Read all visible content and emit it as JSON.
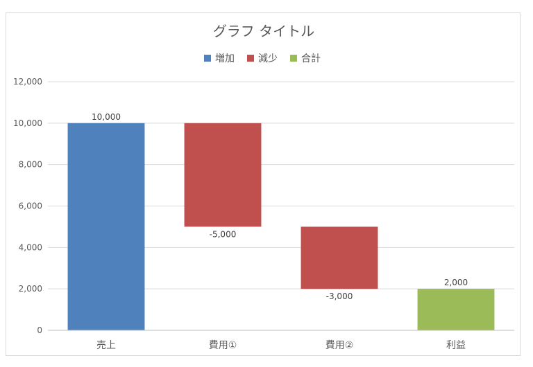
{
  "chart_data": {
    "type": "bar",
    "subtype": "waterfall",
    "title": "グラフ タイトル",
    "legend": [
      {
        "name": "増加",
        "color": "#4f81bd"
      },
      {
        "name": "減少",
        "color": "#c0504d"
      },
      {
        "name": "合計",
        "color": "#9bbb59"
      }
    ],
    "legend_position": "top",
    "categories": [
      "売上",
      "費用①",
      "費用②",
      "利益"
    ],
    "bars": [
      {
        "category": "売上",
        "series": "増加",
        "start": 0,
        "end": 10000,
        "label": "10,000"
      },
      {
        "category": "費用①",
        "series": "減少",
        "start": 10000,
        "end": 5000,
        "label": "-5,000"
      },
      {
        "category": "費用②",
        "series": "減少",
        "start": 5000,
        "end": 2000,
        "label": "-3,000"
      },
      {
        "category": "利益",
        "series": "合計",
        "start": 0,
        "end": 2000,
        "label": "2,000"
      }
    ],
    "ylim": [
      0,
      12000
    ],
    "yticks": [
      0,
      2000,
      4000,
      6000,
      8000,
      10000,
      12000
    ],
    "ytick_labels": [
      "0",
      "2,000",
      "4,000",
      "6,000",
      "8,000",
      "10,000",
      "12,000"
    ],
    "grid": true,
    "gridline_color": "#d9d9d9",
    "xlabel": "",
    "ylabel": ""
  }
}
